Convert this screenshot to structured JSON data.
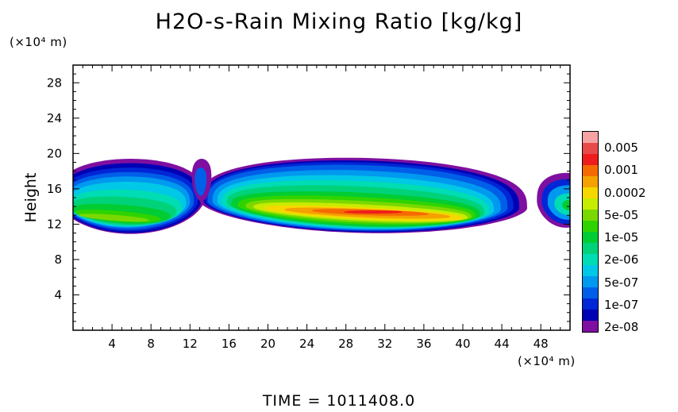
{
  "title": "H2O-s-Rain Mixing Ratio [kg/kg]",
  "y_unit": "(×10⁴ m)",
  "x_unit": "(×10⁴ m)",
  "ylabel": "Height",
  "time_label": "TIME  =  1011408.0",
  "chart_data": {
    "type": "heatmap",
    "title": "H2O-s-Rain Mixing Ratio [kg/kg]",
    "xlabel": "",
    "ylabel": "Height",
    "x_unit": "(×10⁴ m)",
    "y_unit": "(×10⁴ m)",
    "xlim": [
      0,
      51
    ],
    "ylim": [
      0,
      30
    ],
    "xticks": [
      "4",
      "8",
      "12",
      "16",
      "20",
      "24",
      "28",
      "32",
      "36",
      "40",
      "44",
      "48"
    ],
    "yticks": [
      "4",
      "8",
      "12",
      "16",
      "20",
      "24",
      "28"
    ],
    "colorbar": {
      "labels": [
        "0.005",
        "0.001",
        "0.0002",
        "5e-05",
        "1e-05",
        "2e-06",
        "5e-07",
        "1e-07",
        "2e-08"
      ],
      "levels_top_to_bottom": [
        "#f5a3a3",
        "#e84a4a",
        "#ee1c1c",
        "#f56a00",
        "#f5a100",
        "#f5d800",
        "#c6ec00",
        "#7ad800",
        "#2fd400",
        "#00cc33",
        "#00d27a",
        "#00dcb4",
        "#00c8e6",
        "#0099f0",
        "#005fe8",
        "#0026d6",
        "#0000b4",
        "#7e0fa0"
      ]
    },
    "field": {
      "description_of_regions": "layered cloud bands of decreasing intensity from core outward",
      "regions": [
        {
          "x_range": [
            0,
            13.3
          ],
          "y_range": [
            11,
            19.5
          ],
          "max_level": "0.0002"
        },
        {
          "x_range": [
            13.3,
            46.5
          ],
          "y_range": [
            10.8,
            19.5
          ],
          "max_level": "0.005"
        },
        {
          "x_range": [
            48,
            51
          ],
          "y_range": [
            11.5,
            17.8
          ],
          "max_level": "5e-05"
        }
      ]
    },
    "grid": false
  },
  "colors": {
    "background": "#ffffff",
    "axis": "#000000"
  }
}
